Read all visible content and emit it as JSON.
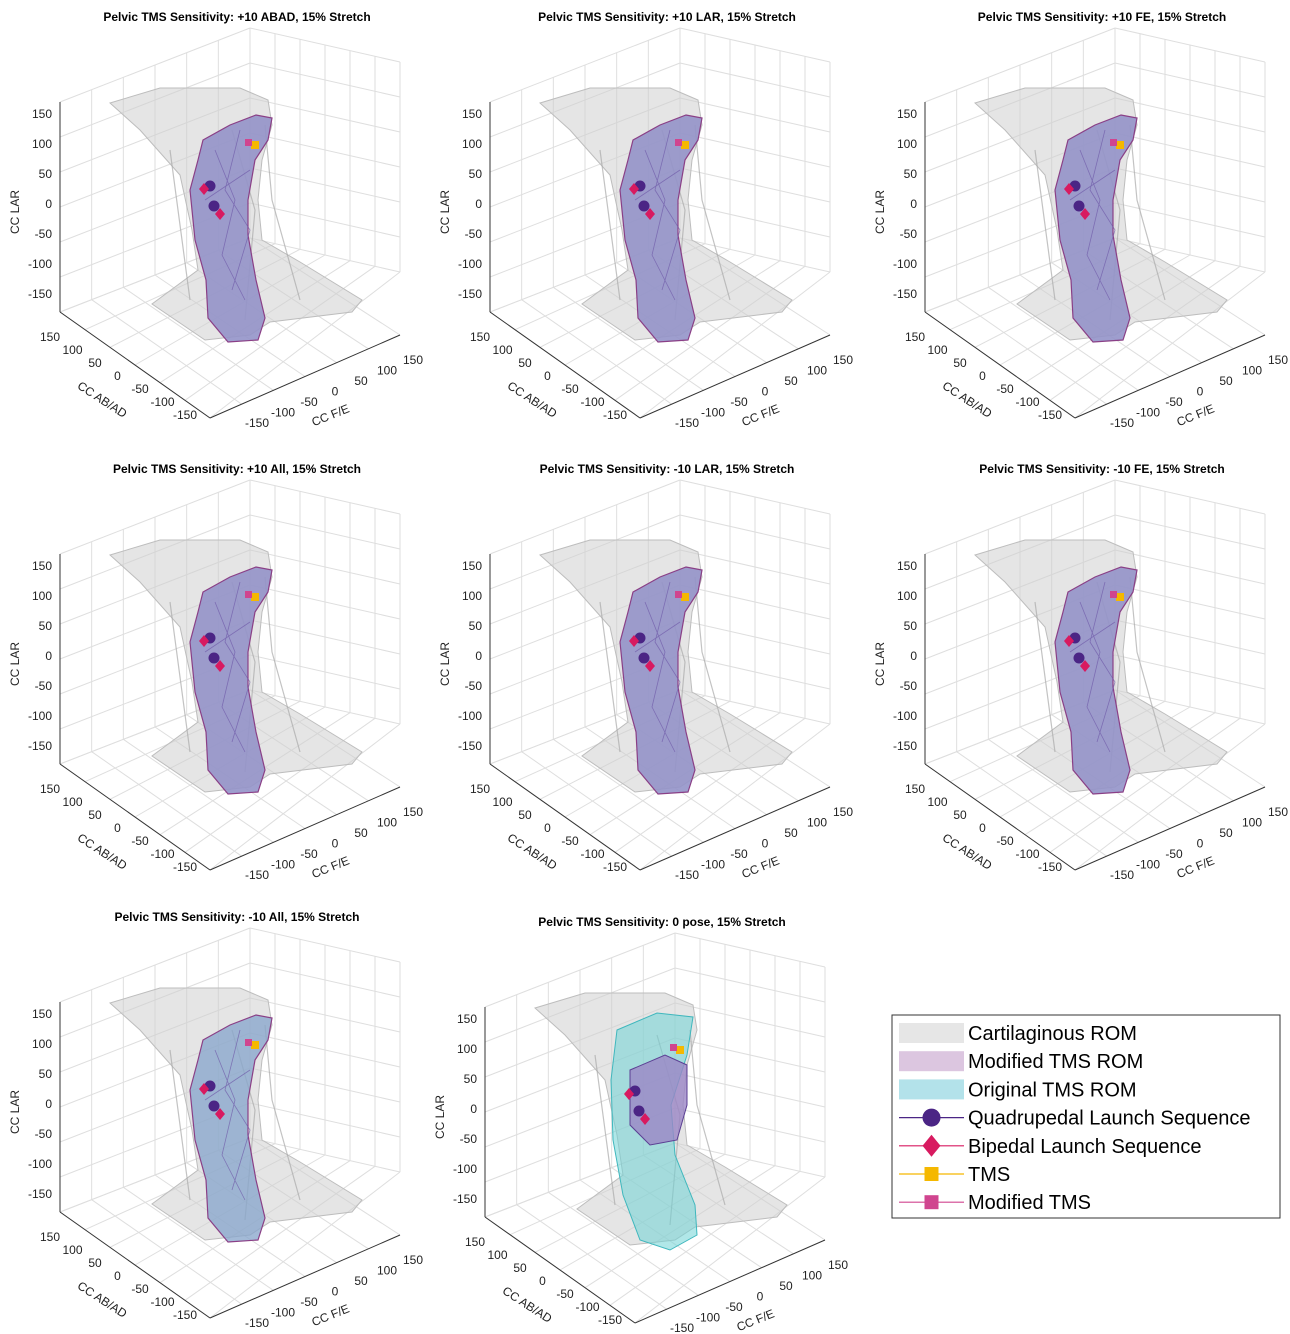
{
  "figure": {
    "legend": [
      {
        "label": "Cartilaginous ROM",
        "kind": "patch",
        "color": "#e6e6e6"
      },
      {
        "label": "Modified TMS ROM",
        "kind": "patch",
        "color": "#dcc6e0"
      },
      {
        "label": "Original TMS ROM",
        "kind": "patch",
        "color": "#b3e2ea"
      },
      {
        "label": "Quadrupedal Launch Sequence",
        "kind": "marker",
        "marker": "circle",
        "color": "#4b2585"
      },
      {
        "label": "Bipedal Launch Sequence",
        "kind": "marker",
        "marker": "diamond",
        "color": "#d81a60"
      },
      {
        "label": "TMS",
        "kind": "marker",
        "marker": "square",
        "color": "#f5b800"
      },
      {
        "label": "Modified TMS",
        "kind": "marker",
        "marker": "square",
        "color": "#d0458f"
      }
    ],
    "colors": {
      "cartilaginous": "#cfcfcf",
      "modified": "#9b86c6",
      "original": "#6fd3d6",
      "quadrupedal": "#4b2585",
      "bipedal": "#d81a60",
      "tms": "#f5b800",
      "modified_tms": "#d0458f"
    }
  },
  "chart_data": [
    {
      "type": "scatter",
      "title": "Pelvic TMS Sensitivity: +10 ABAD, 15% Stretch",
      "xlabel": "CC F/E",
      "ylabel": "CC AB/AD",
      "zlabel": "CC LAR",
      "xticks": [
        "150",
        "100",
        "50",
        "0",
        "-50",
        "-100",
        "-150"
      ],
      "yticks": [
        "150",
        "100",
        "50",
        "0",
        "-50",
        "-100",
        "-150"
      ],
      "zticks": [
        "150",
        "100",
        "50",
        "0",
        "-50",
        "-100",
        "-150"
      ],
      "xlim": [
        -150,
        150
      ],
      "ylim": [
        -150,
        150
      ],
      "zlim": [
        -150,
        150
      ],
      "grid": true,
      "highlight": "modified"
    },
    {
      "type": "scatter",
      "title": "Pelvic TMS Sensitivity: +10 LAR, 15% Stretch",
      "xlabel": "CC F/E",
      "ylabel": "CC AB/AD",
      "zlabel": "CC LAR",
      "xticks": [
        "150",
        "100",
        "50",
        "0",
        "-50",
        "-100",
        "-150"
      ],
      "yticks": [
        "150",
        "100",
        "50",
        "0",
        "-50",
        "-100",
        "-150"
      ],
      "zticks": [
        "150",
        "100",
        "50",
        "0",
        "-50",
        "-100",
        "-150"
      ],
      "xlim": [
        -150,
        150
      ],
      "ylim": [
        -150,
        150
      ],
      "zlim": [
        -150,
        150
      ],
      "grid": true,
      "highlight": "modified"
    },
    {
      "type": "scatter",
      "title": "Pelvic TMS Sensitivity: +10 FE, 15% Stretch",
      "xlabel": "CC F/E",
      "ylabel": "CC AB/AD",
      "zlabel": "CC LAR",
      "xticks": [
        "150",
        "100",
        "50",
        "0",
        "-50",
        "-100",
        "-150"
      ],
      "yticks": [
        "150",
        "100",
        "50",
        "0",
        "-50",
        "-100",
        "-150"
      ],
      "zticks": [
        "150",
        "100",
        "50",
        "0",
        "-50",
        "-100",
        "-150"
      ],
      "xlim": [
        -150,
        150
      ],
      "ylim": [
        -150,
        150
      ],
      "zlim": [
        -150,
        150
      ],
      "grid": true,
      "highlight": "modified"
    },
    {
      "type": "scatter",
      "title": "Pelvic TMS Sensitivity: +10 All, 15% Stretch",
      "xlabel": "CC F/E",
      "ylabel": "CC AB/AD",
      "zlabel": "CC LAR",
      "xticks": [
        "150",
        "100",
        "50",
        "0",
        "-50",
        "-100",
        "-150"
      ],
      "yticks": [
        "150",
        "100",
        "50",
        "0",
        "-50",
        "-100",
        "-150"
      ],
      "zticks": [
        "150",
        "100",
        "50",
        "0",
        "-50",
        "-100",
        "-150"
      ],
      "xlim": [
        -150,
        150
      ],
      "ylim": [
        -150,
        150
      ],
      "zlim": [
        -150,
        150
      ],
      "grid": true,
      "highlight": "modified"
    },
    {
      "type": "scatter",
      "title": "Pelvic TMS Sensitivity: -10 LAR, 15% Stretch",
      "xlabel": "CC F/E",
      "ylabel": "CC AB/AD",
      "zlabel": "CC LAR",
      "xticks": [
        "150",
        "100",
        "50",
        "0",
        "-50",
        "-100",
        "-150"
      ],
      "yticks": [
        "150",
        "100",
        "50",
        "0",
        "-50",
        "-100",
        "-150"
      ],
      "zticks": [
        "150",
        "100",
        "50",
        "0",
        "-50",
        "-100",
        "-150"
      ],
      "xlim": [
        -150,
        150
      ],
      "ylim": [
        -150,
        150
      ],
      "zlim": [
        -150,
        150
      ],
      "grid": true,
      "highlight": "modified"
    },
    {
      "type": "scatter",
      "title": "Pelvic TMS Sensitivity: -10 FE, 15% Stretch",
      "xlabel": "CC F/E",
      "ylabel": "CC AB/AD",
      "zlabel": "CC LAR",
      "xticks": [
        "150",
        "100",
        "50",
        "0",
        "-50",
        "-100",
        "-150"
      ],
      "yticks": [
        "150",
        "100",
        "50",
        "0",
        "-50",
        "-100",
        "-150"
      ],
      "zticks": [
        "150",
        "100",
        "50",
        "0",
        "-50",
        "-100",
        "-150"
      ],
      "xlim": [
        -150,
        150
      ],
      "ylim": [
        -150,
        150
      ],
      "zlim": [
        -150,
        150
      ],
      "grid": true,
      "highlight": "modified"
    },
    {
      "type": "scatter",
      "title": "Pelvic TMS Sensitivity: -10 All, 15% Stretch",
      "xlabel": "CC F/E",
      "ylabel": "CC AB/AD",
      "zlabel": "CC LAR",
      "xticks": [
        "150",
        "100",
        "50",
        "0",
        "-50",
        "-100",
        "-150"
      ],
      "yticks": [
        "150",
        "100",
        "50",
        "0",
        "-50",
        "-100",
        "-150"
      ],
      "zticks": [
        "150",
        "100",
        "50",
        "0",
        "-50",
        "-100",
        "-150"
      ],
      "xlim": [
        -150,
        150
      ],
      "ylim": [
        -150,
        150
      ],
      "zlim": [
        -150,
        150
      ],
      "grid": true,
      "highlight": "mixed"
    },
    {
      "type": "scatter",
      "title": "Pelvic TMS Sensitivity: 0 pose, 15% Stretch",
      "xlabel": "CC F/E",
      "ylabel": "CC AB/AD",
      "zlabel": "CC LAR",
      "xticks": [
        "150",
        "100",
        "50",
        "0",
        "-50",
        "-100",
        "-150"
      ],
      "yticks": [
        "150",
        "100",
        "50",
        "0",
        "-50",
        "-100",
        "-150"
      ],
      "zticks": [
        "150",
        "100",
        "50",
        "0",
        "-50",
        "-100",
        "-150"
      ],
      "xlim": [
        -150,
        150
      ],
      "ylim": [
        -150,
        150
      ],
      "zlim": [
        -150,
        150
      ],
      "grid": true,
      "highlight": "original"
    }
  ]
}
